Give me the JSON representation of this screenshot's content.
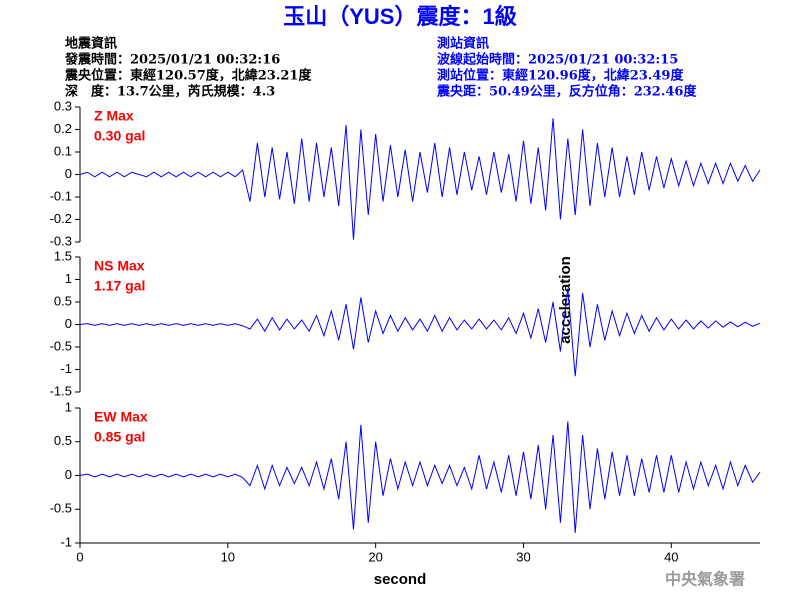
{
  "header": {
    "title": "玉山（YUS）震度：1級",
    "left": [
      "地震資訊",
      "發震時間：2025/01/21 00:32:16",
      "震央位置：東經120.57度，北緯23.21度",
      "深　度：13.7公里，芮氏規模：4.3"
    ],
    "right": [
      "測站資訊",
      "波線起始時間：2025/01/21 00:32:15",
      "測站位置：東經120.96度，北緯23.49度",
      "震央距：50.49公里，反方位角：232.46度"
    ]
  },
  "chart_data": [
    {
      "type": "line",
      "color": "#0000ff",
      "annotations": [
        "Z Max",
        "0.30 gal"
      ],
      "annotation_color": "#ff0000",
      "xlim": [
        0,
        46
      ],
      "ylim": [
        -0.3,
        0.3
      ],
      "yticks": [
        -0.3,
        -0.2,
        -0.1,
        0,
        0.1,
        0.2,
        0.3
      ],
      "x": [
        0,
        0.5,
        1,
        1.5,
        2,
        2.5,
        3,
        3.5,
        4,
        4.5,
        5,
        5.5,
        6,
        6.5,
        7,
        7.5,
        8,
        8.5,
        9,
        9.5,
        10,
        10.5,
        11,
        11.5,
        12,
        12.5,
        13,
        13.5,
        14,
        14.5,
        15,
        15.5,
        16,
        16.5,
        17,
        17.5,
        18,
        18.5,
        19,
        19.5,
        20,
        20.5,
        21,
        21.5,
        22,
        22.5,
        23,
        23.5,
        24,
        24.5,
        25,
        25.5,
        26,
        26.5,
        27,
        27.5,
        28,
        28.5,
        29,
        29.5,
        30,
        30.5,
        31,
        31.5,
        32,
        32.5,
        33,
        33.5,
        34,
        34.5,
        35,
        35.5,
        36,
        36.5,
        37,
        37.5,
        38,
        38.5,
        39,
        39.5,
        40,
        40.5,
        41,
        41.5,
        42,
        42.5,
        43,
        43.5,
        44,
        44.5,
        45,
        45.5,
        46
      ],
      "values": [
        0,
        0.01,
        -0.01,
        0.01,
        -0.01,
        0.01,
        -0.01,
        0.01,
        0,
        -0.01,
        0.01,
        -0.01,
        0.01,
        -0.01,
        0.01,
        -0.01,
        0.01,
        -0.01,
        0.01,
        -0.01,
        0.01,
        -0.01,
        0.02,
        -0.12,
        0.14,
        -0.1,
        0.12,
        -0.11,
        0.1,
        -0.13,
        0.16,
        -0.12,
        0.14,
        -0.1,
        0.12,
        -0.14,
        0.22,
        -0.29,
        0.2,
        -0.18,
        0.18,
        -0.12,
        0.13,
        -0.1,
        0.11,
        -0.12,
        0.1,
        -0.08,
        0.14,
        -0.1,
        0.12,
        -0.09,
        0.1,
        -0.07,
        0.08,
        -0.09,
        0.1,
        -0.08,
        0.09,
        -0.12,
        0.15,
        -0.13,
        0.12,
        -0.16,
        0.25,
        -0.2,
        0.16,
        -0.18,
        0.2,
        -0.14,
        0.14,
        -0.1,
        0.12,
        -0.1,
        0.08,
        -0.09,
        0.1,
        -0.07,
        0.08,
        -0.06,
        0.07,
        -0.05,
        0.06,
        -0.05,
        0.05,
        -0.04,
        0.05,
        -0.04,
        0.05,
        -0.03,
        0.04,
        -0.03,
        0.02
      ]
    },
    {
      "type": "line",
      "color": "#0000ff",
      "annotations": [
        "NS Max",
        "1.17 gal"
      ],
      "annotation_color": "#ff0000",
      "ylabel": "acceleration",
      "xlim": [
        0,
        46
      ],
      "ylim": [
        -1.5,
        1.5
      ],
      "yticks": [
        -1.5,
        -1,
        -0.5,
        0,
        0.5,
        1,
        1.5
      ],
      "x": [
        0,
        0.5,
        1,
        1.5,
        2,
        2.5,
        3,
        3.5,
        4,
        4.5,
        5,
        5.5,
        6,
        6.5,
        7,
        7.5,
        8,
        8.5,
        9,
        9.5,
        10,
        10.5,
        11,
        11.5,
        12,
        12.5,
        13,
        13.5,
        14,
        14.5,
        15,
        15.5,
        16,
        16.5,
        17,
        17.5,
        18,
        18.5,
        19,
        19.5,
        20,
        20.5,
        21,
        21.5,
        22,
        22.5,
        23,
        23.5,
        24,
        24.5,
        25,
        25.5,
        26,
        26.5,
        27,
        27.5,
        28,
        28.5,
        29,
        29.5,
        30,
        30.5,
        31,
        31.5,
        32,
        32.5,
        33,
        33.5,
        34,
        34.5,
        35,
        35.5,
        36,
        36.5,
        37,
        37.5,
        38,
        38.5,
        39,
        39.5,
        40,
        40.5,
        41,
        41.5,
        42,
        42.5,
        43,
        43.5,
        44,
        44.5,
        45,
        45.5,
        46
      ],
      "values": [
        0,
        0.02,
        -0.02,
        0.02,
        -0.02,
        0.02,
        -0.02,
        0.02,
        -0.02,
        0.02,
        -0.02,
        0.02,
        -0.02,
        0.02,
        -0.02,
        0.02,
        -0.02,
        0.02,
        -0.02,
        0.02,
        -0.02,
        0.02,
        -0.03,
        -0.1,
        0.12,
        -0.15,
        0.15,
        -0.12,
        0.12,
        -0.1,
        0.1,
        -0.15,
        0.2,
        -0.25,
        0.3,
        -0.35,
        0.45,
        -0.55,
        0.6,
        -0.4,
        0.3,
        -0.2,
        0.2,
        -0.15,
        0.15,
        -0.12,
        0.12,
        -0.15,
        0.2,
        -0.15,
        0.15,
        -0.12,
        0.1,
        -0.1,
        0.12,
        -0.1,
        0.1,
        -0.12,
        0.15,
        -0.2,
        0.25,
        -0.3,
        0.35,
        -0.4,
        0.5,
        -0.6,
        0.8,
        -1.15,
        0.7,
        -0.5,
        0.45,
        -0.35,
        0.3,
        -0.25,
        0.25,
        -0.2,
        0.2,
        -0.15,
        0.15,
        -0.12,
        0.12,
        -0.1,
        0.1,
        -0.1,
        0.08,
        -0.08,
        0.08,
        -0.06,
        0.06,
        -0.05,
        0.05,
        -0.04,
        0.03
      ]
    },
    {
      "type": "line",
      "color": "#0000ff",
      "annotations": [
        "EW Max",
        "0.85 gal"
      ],
      "annotation_color": "#ff0000",
      "xlabel": "second",
      "xlim": [
        0,
        46
      ],
      "xticks": [
        0,
        10,
        20,
        30,
        40
      ],
      "ylim": [
        -1,
        1
      ],
      "yticks": [
        -1,
        -0.5,
        0,
        0.5,
        1
      ],
      "x": [
        0,
        0.5,
        1,
        1.5,
        2,
        2.5,
        3,
        3.5,
        4,
        4.5,
        5,
        5.5,
        6,
        6.5,
        7,
        7.5,
        8,
        8.5,
        9,
        9.5,
        10,
        10.5,
        11,
        11.5,
        12,
        12.5,
        13,
        13.5,
        14,
        14.5,
        15,
        15.5,
        16,
        16.5,
        17,
        17.5,
        18,
        18.5,
        19,
        19.5,
        20,
        20.5,
        21,
        21.5,
        22,
        22.5,
        23,
        23.5,
        24,
        24.5,
        25,
        25.5,
        26,
        26.5,
        27,
        27.5,
        28,
        28.5,
        29,
        29.5,
        30,
        30.5,
        31,
        31.5,
        32,
        32.5,
        33,
        33.5,
        34,
        34.5,
        35,
        35.5,
        36,
        36.5,
        37,
        37.5,
        38,
        38.5,
        39,
        39.5,
        40,
        40.5,
        41,
        41.5,
        42,
        42.5,
        43,
        43.5,
        44,
        44.5,
        45,
        45.5,
        46
      ],
      "values": [
        0,
        0.02,
        -0.02,
        0.02,
        -0.02,
        0.02,
        -0.02,
        0.02,
        -0.02,
        0.02,
        -0.02,
        0.02,
        -0.02,
        0.02,
        -0.02,
        0.02,
        -0.02,
        0.02,
        -0.02,
        0.02,
        -0.02,
        0.02,
        -0.03,
        -0.15,
        0.15,
        -0.2,
        0.15,
        -0.15,
        0.12,
        -0.12,
        0.12,
        -0.15,
        0.2,
        -0.2,
        0.25,
        -0.35,
        0.5,
        -0.8,
        0.75,
        -0.7,
        0.5,
        -0.3,
        0.25,
        -0.2,
        0.2,
        -0.15,
        0.2,
        -0.15,
        0.15,
        -0.12,
        0.15,
        -0.15,
        0.12,
        -0.2,
        0.3,
        -0.2,
        0.2,
        -0.25,
        0.3,
        -0.3,
        0.35,
        -0.35,
        0.45,
        -0.5,
        0.6,
        -0.7,
        0.8,
        -0.85,
        0.6,
        -0.5,
        0.4,
        -0.35,
        0.35,
        -0.3,
        0.3,
        -0.3,
        0.25,
        -0.25,
        0.3,
        -0.25,
        0.3,
        -0.25,
        0.2,
        -0.2,
        0.2,
        -0.15,
        0.15,
        -0.2,
        0.2,
        -0.15,
        0.15,
        -0.1,
        0.05
      ]
    }
  ],
  "footer": {
    "credit": "中央氣象署"
  }
}
